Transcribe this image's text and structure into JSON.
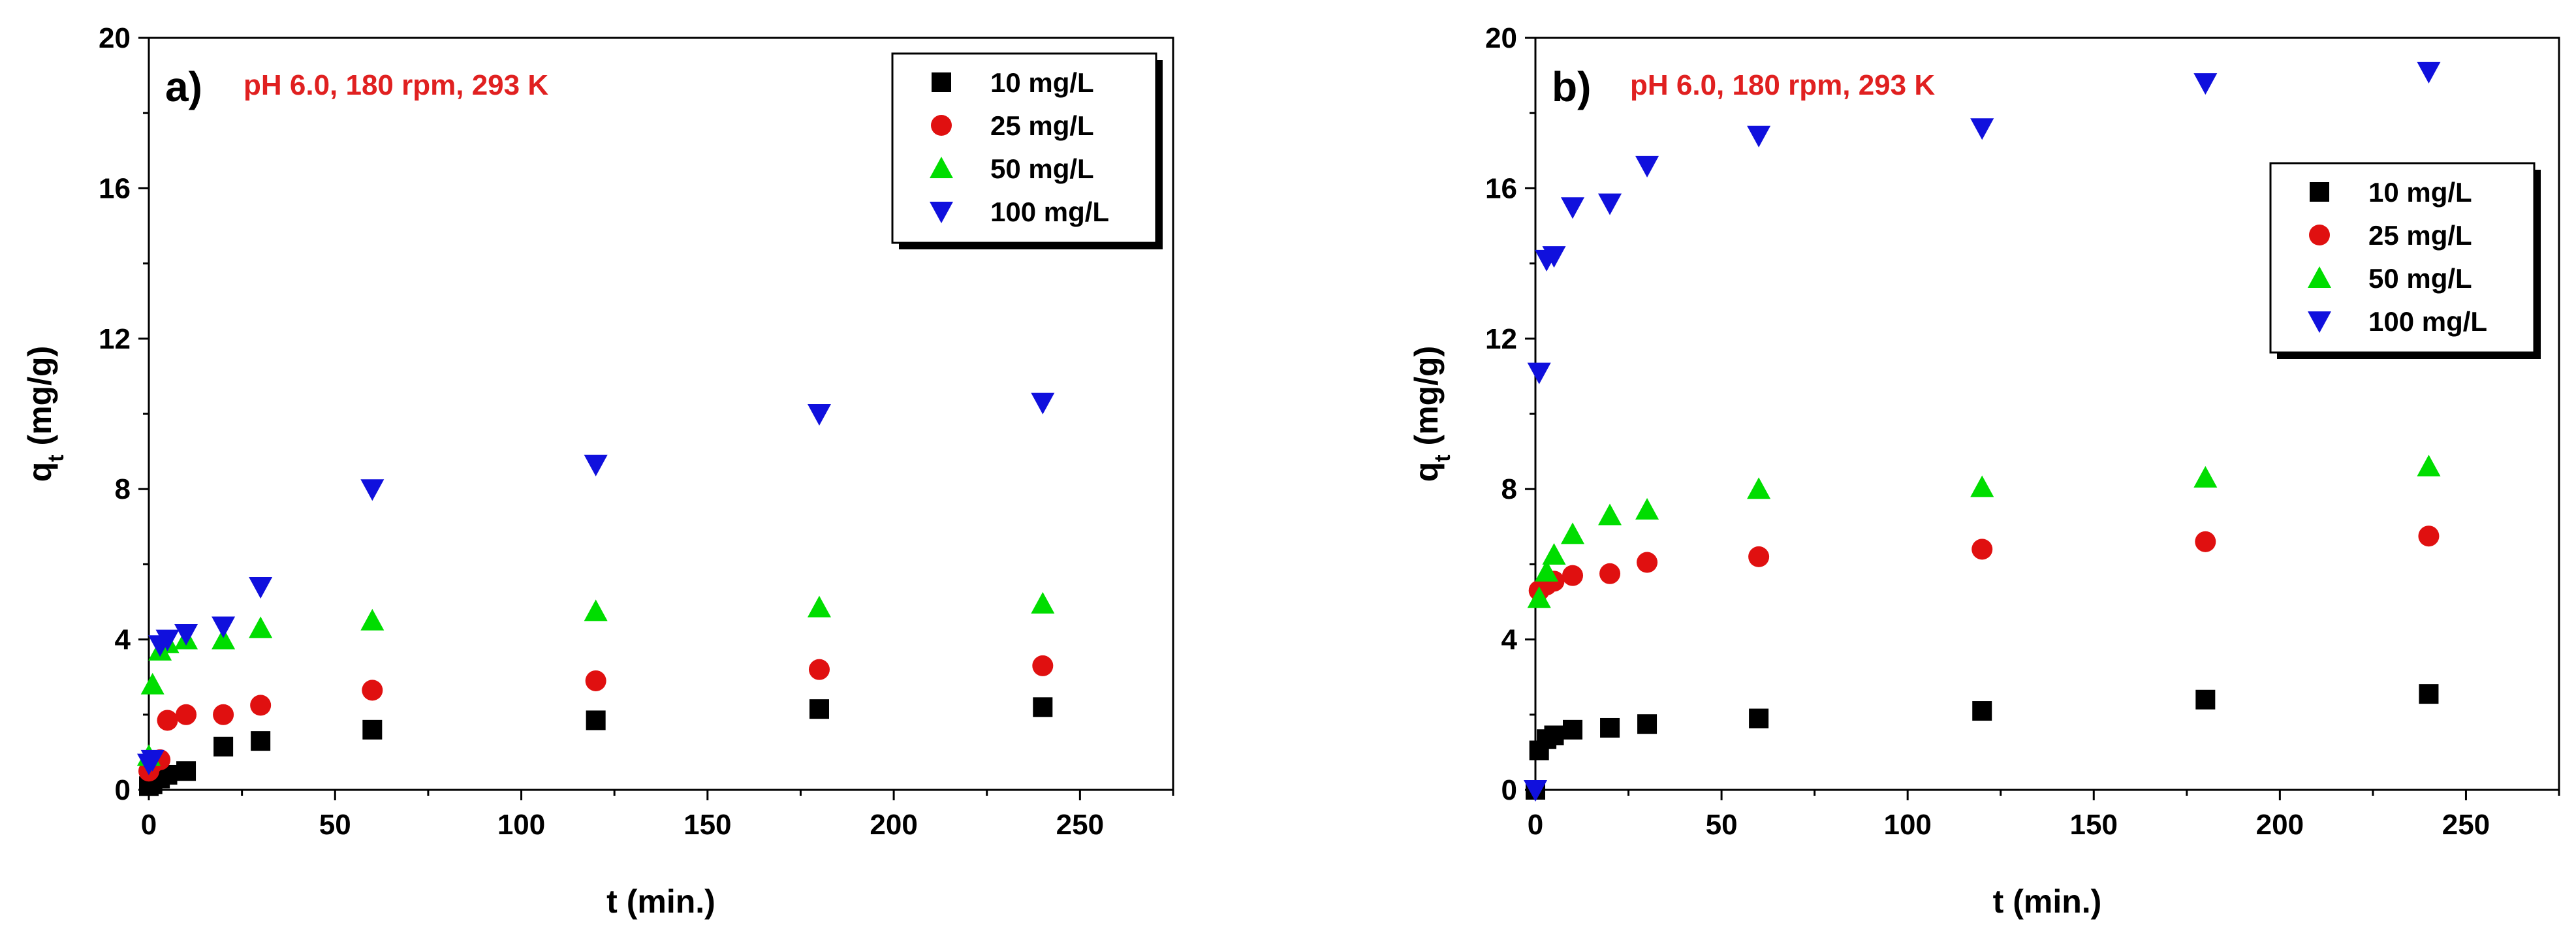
{
  "chart_data": [
    {
      "type": "scatter",
      "panel_label": "a)",
      "annotation": "pH 6.0, 180 rpm, 293 K",
      "annotation_color": "#e02020",
      "xlabel": "t (min.)",
      "ylabel": "q_t (mg/g)",
      "xlim": [
        0,
        275
      ],
      "ylim": [
        0,
        20
      ],
      "xticks": [
        0,
        50,
        100,
        150,
        200,
        250
      ],
      "yticks": [
        0,
        4,
        8,
        12,
        16,
        20
      ],
      "legend_position": "top-right",
      "series": [
        {
          "name": "10 mg/L",
          "marker": "square",
          "color": "#000000",
          "x": [
            0,
            1,
            3,
            5,
            10,
            20,
            30,
            60,
            120,
            180,
            240
          ],
          "y": [
            0.1,
            0.15,
            0.3,
            0.4,
            0.5,
            1.15,
            1.3,
            1.6,
            1.85,
            2.15,
            2.2
          ]
        },
        {
          "name": "25 mg/L",
          "marker": "circle",
          "color": "#e01010",
          "x": [
            0,
            1,
            3,
            5,
            10,
            20,
            30,
            60,
            120,
            180,
            240
          ],
          "y": [
            0.5,
            0.7,
            0.8,
            1.85,
            2.0,
            2.0,
            2.25,
            2.65,
            2.9,
            3.2,
            3.3
          ]
        },
        {
          "name": "50 mg/L",
          "marker": "triangle-up",
          "color": "#00dd00",
          "x": [
            0,
            1,
            3,
            5,
            10,
            20,
            30,
            60,
            120,
            180,
            240
          ],
          "y": [
            0.9,
            2.8,
            3.7,
            3.9,
            4.0,
            4.0,
            4.3,
            4.5,
            4.75,
            4.85,
            4.95
          ]
        },
        {
          "name": "100 mg/L",
          "marker": "triangle-down",
          "color": "#1010dd",
          "x": [
            0,
            1,
            3,
            5,
            10,
            20,
            30,
            60,
            120,
            180,
            240
          ],
          "y": [
            0.7,
            0.8,
            3.85,
            4.0,
            4.15,
            4.35,
            5.4,
            8.0,
            8.65,
            10.0,
            10.3
          ]
        }
      ]
    },
    {
      "type": "scatter",
      "panel_label": "b)",
      "annotation": "pH 6.0, 180 rpm, 293 K",
      "annotation_color": "#e02020",
      "xlabel": "t (min.)",
      "ylabel": "q_t (mg/g)",
      "xlim": [
        0,
        275
      ],
      "ylim": [
        0,
        20
      ],
      "xticks": [
        0,
        50,
        100,
        150,
        200,
        250
      ],
      "yticks": [
        0,
        4,
        8,
        12,
        16,
        20
      ],
      "legend_position": "right",
      "series": [
        {
          "name": "10 mg/L",
          "marker": "square",
          "color": "#000000",
          "x": [
            0,
            1,
            3,
            5,
            10,
            20,
            30,
            60,
            120,
            180,
            240
          ],
          "y": [
            0,
            1.05,
            1.35,
            1.45,
            1.6,
            1.65,
            1.75,
            1.9,
            2.1,
            2.4,
            2.55
          ]
        },
        {
          "name": "25 mg/L",
          "marker": "circle",
          "color": "#e01010",
          "x": [
            1,
            3,
            5,
            10,
            20,
            30,
            60,
            120,
            180,
            240
          ],
          "y": [
            5.3,
            5.45,
            5.55,
            5.7,
            5.75,
            6.05,
            6.2,
            6.4,
            6.6,
            6.75
          ]
        },
        {
          "name": "50 mg/L",
          "marker": "triangle-up",
          "color": "#00dd00",
          "x": [
            1,
            3,
            5,
            10,
            20,
            30,
            60,
            120,
            180,
            240
          ],
          "y": [
            5.1,
            5.8,
            6.25,
            6.8,
            7.3,
            7.45,
            8.0,
            8.05,
            8.3,
            8.6
          ]
        },
        {
          "name": "100 mg/L",
          "marker": "triangle-down",
          "color": "#1010dd",
          "x": [
            0,
            1,
            3,
            5,
            10,
            20,
            30,
            60,
            120,
            180,
            240
          ],
          "y": [
            0,
            11.1,
            14.1,
            14.2,
            15.5,
            15.6,
            16.6,
            17.4,
            17.6,
            18.8,
            19.1
          ]
        }
      ]
    }
  ]
}
